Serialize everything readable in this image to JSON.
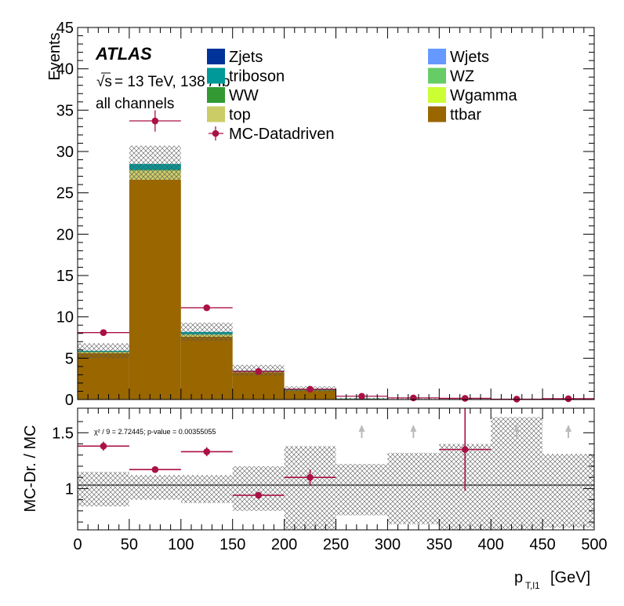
{
  "chart_data": [
    {
      "type": "bar",
      "stacked": true,
      "bin_edges": [
        0,
        50,
        100,
        150,
        200,
        250,
        300,
        350,
        400,
        450,
        500
      ],
      "x_centers": [
        25,
        75,
        125,
        175,
        225,
        275,
        325,
        375,
        425,
        475
      ],
      "ylabel": "Events",
      "ylim": [
        0,
        45
      ],
      "yticks": [
        0,
        5,
        10,
        15,
        20,
        25,
        30,
        35,
        40,
        45
      ],
      "atlas_label": "ATLAS",
      "energy_label": "= 13 TeV, 138 / fb",
      "sqrt_symbol": "√s",
      "channel_label": "all channels",
      "series": [
        {
          "name": "ttbar",
          "color": "#996600",
          "values": [
            5.6,
            26.6,
            7.6,
            3.3,
            1.1,
            0.1,
            0.05,
            0.05,
            0.0,
            0.0
          ]
        },
        {
          "name": "top",
          "color": "#cccc66",
          "values": [
            0.15,
            1.1,
            0.25,
            0.08,
            0.03,
            0.0,
            0.0,
            0.0,
            0.0,
            0.0
          ]
        },
        {
          "name": "Wgamma",
          "color": "#ccff33",
          "values": [
            0.0,
            0.0,
            0.0,
            0.0,
            0.0,
            0.0,
            0.0,
            0.0,
            0.0,
            0.0
          ]
        },
        {
          "name": "WW",
          "color": "#339933",
          "values": [
            0.03,
            0.1,
            0.05,
            0.02,
            0.01,
            0.0,
            0.0,
            0.0,
            0.0,
            0.0
          ]
        },
        {
          "name": "WZ",
          "color": "#66cc66",
          "values": [
            0.0,
            0.0,
            0.0,
            0.0,
            0.0,
            0.0,
            0.0,
            0.0,
            0.0,
            0.0
          ]
        },
        {
          "name": "triboson",
          "color": "#009999",
          "values": [
            0.12,
            0.7,
            0.28,
            0.1,
            0.05,
            0.02,
            0.0,
            0.0,
            0.0,
            0.0
          ]
        },
        {
          "name": "Wjets",
          "color": "#6699ff",
          "values": [
            0.0,
            0.0,
            0.0,
            0.0,
            0.0,
            0.0,
            0.0,
            0.0,
            0.0,
            0.0
          ]
        },
        {
          "name": "Zjets",
          "color": "#003399",
          "values": [
            0.0,
            0.0,
            0.0,
            0.0,
            0.0,
            0.0,
            0.0,
            0.0,
            0.0,
            0.0
          ]
        }
      ],
      "uncertainty_band": {
        "lower": [
          5.0,
          26.6,
          7.1,
          2.9,
          1.0,
          0.05,
          0.0,
          0.0,
          0.0,
          0.0
        ],
        "upper": [
          6.8,
          30.7,
          9.3,
          4.2,
          1.6,
          0.2,
          0.12,
          0.1,
          0.05,
          0.05
        ]
      },
      "data_points": {
        "name": "MC-Datadriven",
        "color": "#aa1144",
        "y": [
          8.1,
          33.7,
          11.1,
          3.4,
          1.25,
          0.4,
          0.2,
          0.15,
          0.05,
          0.1
        ],
        "yerr": [
          0.25,
          1.3,
          0.3,
          0.15,
          0.1,
          0.05,
          0.05,
          0.05,
          0.02,
          0.03
        ]
      },
      "legend": {
        "left": [
          "Zjets",
          "triboson",
          "WW",
          "top",
          "MC-Datadriven"
        ],
        "right": [
          "Wjets",
          "WZ",
          "Wgamma",
          "ttbar"
        ]
      }
    },
    {
      "type": "scatter",
      "xlabel": "p_{T,l1} [GeV]",
      "xlabel_main": "p",
      "xlabel_sub": "T,l1",
      "xlabel_unit": "[GeV]",
      "ylabel": "MC-Dr. / MC",
      "xlim": [
        0,
        500
      ],
      "ylim": [
        0.63,
        1.72
      ],
      "xticks": [
        0,
        50,
        100,
        150,
        200,
        250,
        300,
        350,
        400,
        450,
        500
      ],
      "ytick_labels": [
        "1",
        "1.5"
      ],
      "ytick_values": [
        1.0,
        1.5
      ],
      "reference_line": 1.0,
      "chi2_label": "χ² / 9 = 2.72445; p-value = 0.00355055",
      "ratio_points": {
        "x": [
          25,
          75,
          125,
          175,
          225,
          375
        ],
        "y": [
          1.38,
          1.17,
          1.33,
          0.94,
          1.1,
          1.35
        ],
        "yerr": [
          0.04,
          0.03,
          0.04,
          0.03,
          0.07,
          0.37
        ]
      },
      "offscale_arrow_x": [
        275,
        325,
        425,
        475
      ],
      "ratio_band": {
        "lower": [
          0.84,
          0.9,
          0.87,
          0.8,
          0.56,
          0.76,
          0.68,
          0.6,
          0.6,
          0.65
        ],
        "upper": [
          1.15,
          1.12,
          1.12,
          1.2,
          1.38,
          1.22,
          1.32,
          1.4,
          1.64,
          1.31
        ]
      }
    }
  ]
}
